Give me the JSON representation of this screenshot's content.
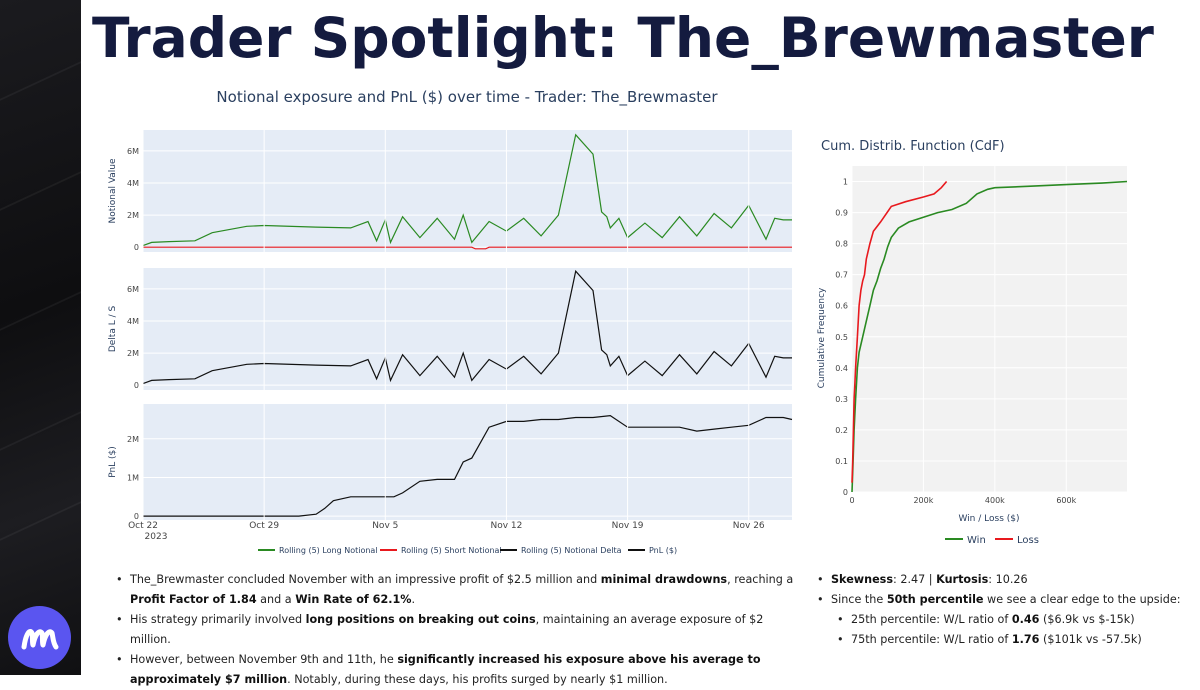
{
  "slide_title": "Trader Spotlight: The_Brewmaster",
  "main_chart": {
    "title": "Notional exposure and PnL ($) over time - Trader: The_Brewmaster",
    "panels": [
      {
        "ylabel": "Notional Value",
        "ticks": [
          "0",
          "2M",
          "4M",
          "6M"
        ]
      },
      {
        "ylabel": "Delta L / S",
        "ticks": [
          "0",
          "2M",
          "4M",
          "6M"
        ]
      },
      {
        "ylabel": "PnL ($)",
        "ticks": [
          "0",
          "1M",
          "2M"
        ]
      }
    ],
    "x_ticks": [
      "Oct 22",
      "Oct 29",
      "Nov 5",
      "Nov 12",
      "Nov 19",
      "Nov 26"
    ],
    "x_year": "2023",
    "legend": [
      {
        "label": "Rolling (5) Long Notional",
        "color": "#2a8a22"
      },
      {
        "label": "Rolling (5) Short Notional",
        "color": "#e8191e"
      },
      {
        "label": "Rolling (5) Notional Delta",
        "color": "#111111"
      },
      {
        "label": "PnL ($)",
        "color": "#111111"
      }
    ]
  },
  "chart_data": [
    {
      "type": "line",
      "title": "Notional exposure and PnL ($) over time - Trader: The_Brewmaster",
      "x_unit": "days since Oct 22, 2023",
      "xlim": [
        0,
        37.5
      ],
      "series": [
        {
          "name": "Rolling (5) Long Notional",
          "panel": 0,
          "x": [
            0,
            0.5,
            1.5,
            3,
            4,
            6,
            7,
            10,
            12,
            13,
            13.5,
            14,
            14.3,
            15,
            16,
            17,
            18,
            18.5,
            19,
            20,
            21,
            22,
            23,
            24,
            25,
            26,
            26.5,
            26.8,
            27,
            27.5,
            28,
            29,
            30,
            31,
            32,
            33,
            34,
            35,
            36,
            36.5,
            37,
            37.5
          ],
          "y": [
            0.1,
            0.3,
            0.35,
            0.4,
            0.9,
            1.3,
            1.35,
            1.25,
            1.2,
            1.6,
            0.4,
            1.7,
            0.3,
            1.9,
            0.6,
            1.8,
            0.5,
            2.0,
            0.3,
            1.6,
            1.0,
            1.8,
            0.7,
            2.0,
            7.0,
            5.8,
            2.2,
            1.9,
            1.2,
            1.8,
            0.6,
            1.5,
            0.6,
            1.9,
            0.7,
            2.1,
            1.2,
            2.6,
            0.5,
            1.8,
            1.7,
            1.7
          ]
        },
        {
          "name": "Rolling (5) Short Notional",
          "panel": 0,
          "x": [
            0,
            19,
            19.2,
            19.8,
            20,
            37.5
          ],
          "y": [
            0,
            0,
            -0.1,
            -0.1,
            0,
            0
          ]
        },
        {
          "name": "Rolling (5) Notional Delta",
          "panel": 1,
          "x": [
            0,
            0.5,
            1.5,
            3,
            4,
            6,
            7,
            10,
            12,
            13,
            13.5,
            14,
            14.3,
            15,
            16,
            17,
            18,
            18.5,
            19,
            20,
            21,
            22,
            23,
            24,
            25,
            26,
            26.5,
            26.8,
            27,
            27.5,
            28,
            29,
            30,
            31,
            32,
            33,
            34,
            35,
            36,
            36.5,
            37,
            37.5
          ],
          "y": [
            0.1,
            0.3,
            0.35,
            0.4,
            0.9,
            1.3,
            1.35,
            1.25,
            1.2,
            1.6,
            0.4,
            1.7,
            0.3,
            1.9,
            0.6,
            1.8,
            0.5,
            2.0,
            0.3,
            1.6,
            1.0,
            1.8,
            0.7,
            2.0,
            7.1,
            5.9,
            2.2,
            1.9,
            1.2,
            1.8,
            0.6,
            1.5,
            0.6,
            1.9,
            0.7,
            2.1,
            1.2,
            2.6,
            0.5,
            1.8,
            1.7,
            1.7
          ]
        },
        {
          "name": "PnL ($)",
          "panel": 2,
          "x": [
            0,
            5,
            7,
            8,
            9,
            10,
            10.5,
            11,
            12,
            13,
            14,
            14.5,
            15,
            16,
            17,
            18,
            18.5,
            19,
            20,
            21,
            22,
            23,
            24,
            25,
            26,
            27,
            28,
            29,
            30,
            31,
            32,
            33,
            34,
            35,
            36,
            37,
            37.5
          ],
          "y": [
            0,
            0,
            0,
            0,
            0,
            0.05,
            0.2,
            0.4,
            0.5,
            0.5,
            0.5,
            0.5,
            0.6,
            0.9,
            0.95,
            0.95,
            1.4,
            1.5,
            2.3,
            2.45,
            2.45,
            2.5,
            2.5,
            2.55,
            2.55,
            2.6,
            2.3,
            2.3,
            2.3,
            2.3,
            2.2,
            2.25,
            2.3,
            2.35,
            2.55,
            2.55,
            2.5
          ]
        }
      ],
      "panel_ylims": [
        [
          -0.3,
          7.3
        ],
        [
          -0.3,
          7.3
        ],
        [
          -0.1,
          2.9
        ]
      ]
    },
    {
      "type": "line",
      "title": "Cum. Distrib. Function (CdF)",
      "xlabel": "Win / Loss ($)",
      "ylabel": "Cumulative Frequency",
      "xlim": [
        0,
        770000
      ],
      "ylim": [
        0,
        1.05
      ],
      "x_ticks": [
        0,
        200000,
        400000,
        600000
      ],
      "x_tick_labels": [
        "0",
        "200k",
        "400k",
        "600k"
      ],
      "y_ticks": [
        0,
        0.1,
        0.2,
        0.3,
        0.4,
        0.5,
        0.6,
        0.7,
        0.8,
        0.9,
        1
      ],
      "legend": [
        {
          "label": "Win",
          "color": "#2a8a22"
        },
        {
          "label": "Loss",
          "color": "#e8191e"
        }
      ],
      "series": [
        {
          "name": "Win",
          "color": "#2a8a22",
          "x": [
            0,
            3000,
            6000,
            10000,
            15000,
            20000,
            30000,
            40000,
            50000,
            60000,
            70000,
            80000,
            90000,
            100000,
            110000,
            130000,
            160000,
            200000,
            240000,
            280000,
            320000,
            350000,
            380000,
            400000,
            500000,
            600000,
            700000,
            770000
          ],
          "y": [
            0,
            0.1,
            0.2,
            0.3,
            0.4,
            0.45,
            0.5,
            0.55,
            0.6,
            0.65,
            0.68,
            0.72,
            0.75,
            0.79,
            0.82,
            0.85,
            0.87,
            0.885,
            0.9,
            0.91,
            0.93,
            0.96,
            0.975,
            0.98,
            0.985,
            0.99,
            0.995,
            1.0
          ]
        },
        {
          "name": "Loss",
          "color": "#e8191e",
          "x": [
            0,
            2000,
            4000,
            6000,
            8000,
            10000,
            15000,
            20000,
            25000,
            30000,
            35000,
            40000,
            50000,
            60000,
            80000,
            110000,
            150000,
            200000,
            230000,
            250000,
            265000
          ],
          "y": [
            0.03,
            0.1,
            0.2,
            0.3,
            0.35,
            0.4,
            0.5,
            0.6,
            0.65,
            0.68,
            0.7,
            0.75,
            0.8,
            0.84,
            0.87,
            0.92,
            0.935,
            0.95,
            0.96,
            0.98,
            1.0
          ]
        }
      ]
    }
  ],
  "cdf_chart": {
    "title": "Cum. Distrib. Function (CdF)",
    "xlabel": "Win / Loss ($)",
    "ylabel": "Cumulative Frequency",
    "legend_win": "Win",
    "legend_loss": "Loss"
  },
  "bullets_left": [
    [
      {
        "t": "The_Brewmaster concluded November with an impressive profit of $2.5 million and ",
        "b": false
      },
      {
        "t": "minimal drawdowns",
        "b": true
      },
      {
        "t": ", reaching a ",
        "b": false
      },
      {
        "t": "Profit Factor of 1.84",
        "b": true
      },
      {
        "t": " and a ",
        "b": false
      },
      {
        "t": "Win Rate of 62.1%",
        "b": true
      },
      {
        "t": ".",
        "b": false
      }
    ],
    [
      {
        "t": "His strategy primarily involved ",
        "b": false
      },
      {
        "t": "long positions on breaking out coins",
        "b": true
      },
      {
        "t": ", maintaining an average exposure of $2 million.",
        "b": false
      }
    ],
    [
      {
        "t": "However, between November 9th and 11th, he ",
        "b": false
      },
      {
        "t": "significantly increased his exposure above his average to approximately $7 million",
        "b": true
      },
      {
        "t": ". Notably, during these days, his profits surged by nearly $1 million.",
        "b": false
      }
    ]
  ],
  "bullets_right": [
    {
      "level": 1,
      "parts": [
        {
          "t": "Skewness",
          "b": true
        },
        {
          "t": ": 2.47 | ",
          "b": false
        },
        {
          "t": "Kurtosis",
          "b": true
        },
        {
          "t": ": 10.26",
          "b": false
        }
      ]
    },
    {
      "level": 1,
      "parts": [
        {
          "t": "Since the ",
          "b": false
        },
        {
          "t": "50th percentile",
          "b": true
        },
        {
          "t": " we see a clear edge to the upside:",
          "b": false
        }
      ]
    },
    {
      "level": 2,
      "parts": [
        {
          "t": "25th percentile: W/L ratio of ",
          "b": false
        },
        {
          "t": "0.46",
          "b": true
        },
        {
          "t": " ($6.9k vs $-15k)",
          "b": false
        }
      ]
    },
    {
      "level": 2,
      "parts": [
        {
          "t": "75th percentile: W/L ratio of ",
          "b": false
        },
        {
          "t": "1.76",
          "b": true
        },
        {
          "t": " ($101k vs -57.5k)",
          "b": false
        }
      ]
    }
  ]
}
